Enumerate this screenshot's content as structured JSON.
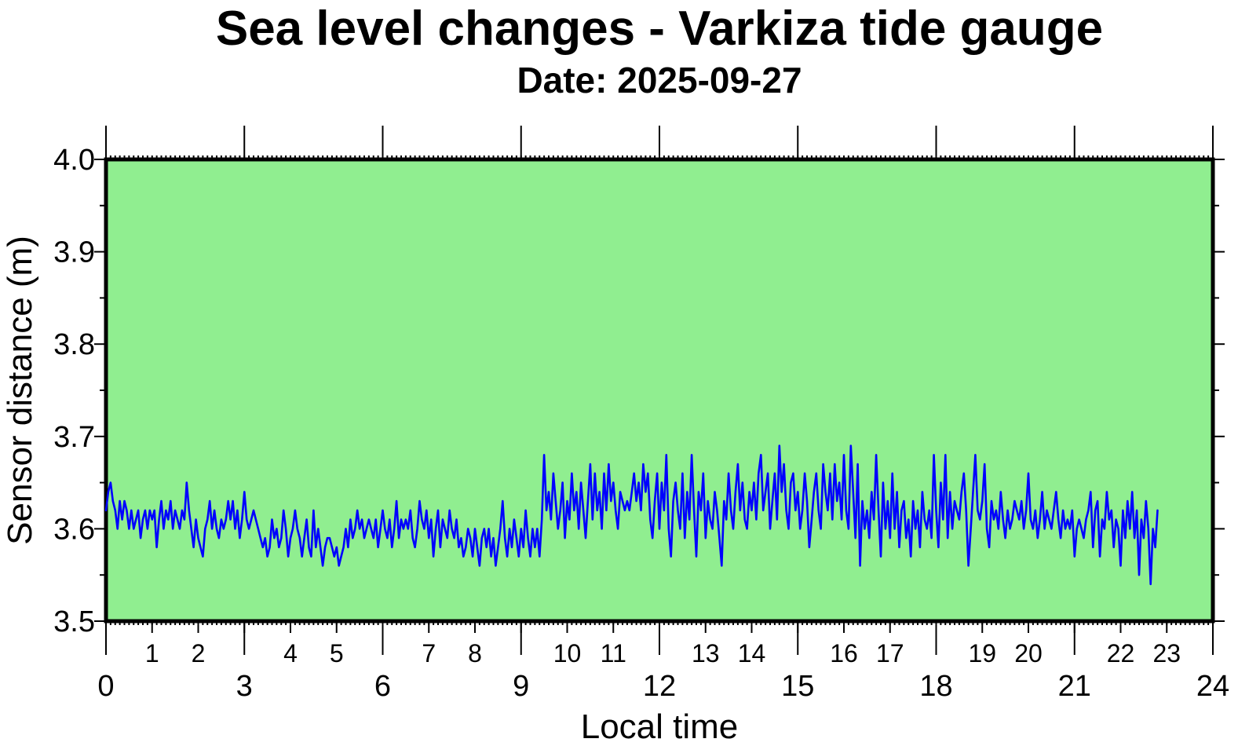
{
  "chart_data": {
    "type": "line",
    "title": "Sea level changes - Varkiza tide gauge",
    "subtitle": "Date: 2025-09-27",
    "xlabel": "Local time",
    "ylabel": "Sensor distance (m)",
    "xlim": [
      0,
      24
    ],
    "ylim": [
      3.5,
      4.0
    ],
    "x_major_ticks": [
      "0",
      "3",
      "6",
      "9",
      "12",
      "15",
      "18",
      "21",
      "24"
    ],
    "x_minor_ticks": [
      "1",
      "2",
      "4",
      "5",
      "7",
      "8",
      "10",
      "11",
      "13",
      "14",
      "16",
      "17",
      "19",
      "20",
      "22",
      "23"
    ],
    "y_ticks": [
      "3.5",
      "3.6",
      "3.7",
      "3.8",
      "3.9",
      "4.0"
    ],
    "grid": false,
    "colors": {
      "plot_background": "#90ee90",
      "line": "#0000ff",
      "frame": "#000000"
    },
    "series": [
      {
        "step_hours": 0.05,
        "values": [
          3.62,
          3.64,
          3.65,
          3.63,
          3.62,
          3.6,
          3.63,
          3.61,
          3.63,
          3.62,
          3.6,
          3.62,
          3.6,
          3.61,
          3.62,
          3.59,
          3.61,
          3.62,
          3.6,
          3.62,
          3.61,
          3.62,
          3.58,
          3.61,
          3.63,
          3.6,
          3.62,
          3.61,
          3.63,
          3.6,
          3.62,
          3.61,
          3.6,
          3.62,
          3.61,
          3.65,
          3.62,
          3.6,
          3.58,
          3.61,
          3.59,
          3.58,
          3.57,
          3.6,
          3.61,
          3.63,
          3.6,
          3.62,
          3.6,
          3.59,
          3.61,
          3.6,
          3.61,
          3.63,
          3.61,
          3.63,
          3.6,
          3.62,
          3.59,
          3.61,
          3.64,
          3.61,
          3.6,
          3.61,
          3.62,
          3.61,
          3.6,
          3.59,
          3.58,
          3.59,
          3.57,
          3.58,
          3.61,
          3.59,
          3.6,
          3.58,
          3.59,
          3.62,
          3.6,
          3.57,
          3.59,
          3.6,
          3.62,
          3.6,
          3.59,
          3.57,
          3.59,
          3.61,
          3.58,
          3.57,
          3.62,
          3.58,
          3.6,
          3.58,
          3.56,
          3.58,
          3.59,
          3.59,
          3.58,
          3.57,
          3.58,
          3.56,
          3.57,
          3.58,
          3.6,
          3.58,
          3.61,
          3.59,
          3.6,
          3.62,
          3.6,
          3.61,
          3.59,
          3.6,
          3.61,
          3.6,
          3.59,
          3.61,
          3.58,
          3.6,
          3.62,
          3.6,
          3.59,
          3.61,
          3.58,
          3.6,
          3.63,
          3.59,
          3.61,
          3.6,
          3.61,
          3.6,
          3.62,
          3.59,
          3.58,
          3.6,
          3.63,
          3.61,
          3.6,
          3.62,
          3.59,
          3.61,
          3.57,
          3.6,
          3.62,
          3.58,
          3.61,
          3.6,
          3.59,
          3.62,
          3.6,
          3.59,
          3.61,
          3.58,
          3.59,
          3.57,
          3.58,
          3.6,
          3.59,
          3.57,
          3.6,
          3.58,
          3.56,
          3.59,
          3.6,
          3.58,
          3.6,
          3.57,
          3.59,
          3.56,
          3.58,
          3.6,
          3.63,
          3.59,
          3.57,
          3.6,
          3.58,
          3.61,
          3.59,
          3.57,
          3.6,
          3.58,
          3.62,
          3.59,
          3.57,
          3.6,
          3.58,
          3.6,
          3.57,
          3.61,
          3.68,
          3.62,
          3.64,
          3.61,
          3.66,
          3.63,
          3.6,
          3.62,
          3.65,
          3.59,
          3.63,
          3.61,
          3.66,
          3.62,
          3.64,
          3.6,
          3.65,
          3.62,
          3.59,
          3.63,
          3.67,
          3.61,
          3.66,
          3.62,
          3.64,
          3.6,
          3.66,
          3.62,
          3.67,
          3.63,
          3.65,
          3.62,
          3.6,
          3.64,
          3.63,
          3.62,
          3.63,
          3.62,
          3.64,
          3.66,
          3.63,
          3.65,
          3.62,
          3.67,
          3.64,
          3.66,
          3.61,
          3.59,
          3.63,
          3.66,
          3.6,
          3.65,
          3.62,
          3.68,
          3.6,
          3.57,
          3.63,
          3.65,
          3.62,
          3.6,
          3.66,
          3.59,
          3.64,
          3.61,
          3.68,
          3.62,
          3.57,
          3.64,
          3.62,
          3.66,
          3.59,
          3.63,
          3.61,
          3.6,
          3.64,
          3.62,
          3.59,
          3.56,
          3.63,
          3.61,
          3.66,
          3.62,
          3.6,
          3.64,
          3.67,
          3.62,
          3.65,
          3.61,
          3.6,
          3.64,
          3.62,
          3.65,
          3.61,
          3.66,
          3.68,
          3.62,
          3.64,
          3.66,
          3.6,
          3.63,
          3.66,
          3.61,
          3.69,
          3.64,
          3.67,
          3.62,
          3.6,
          3.65,
          3.66,
          3.62,
          3.64,
          3.6,
          3.62,
          3.66,
          3.63,
          3.58,
          3.61,
          3.64,
          3.66,
          3.62,
          3.6,
          3.67,
          3.64,
          3.62,
          3.66,
          3.61,
          3.67,
          3.63,
          3.65,
          3.61,
          3.68,
          3.62,
          3.6,
          3.69,
          3.64,
          3.59,
          3.67,
          3.56,
          3.63,
          3.6,
          3.62,
          3.59,
          3.64,
          3.61,
          3.68,
          3.62,
          3.57,
          3.65,
          3.6,
          3.63,
          3.59,
          3.66,
          3.6,
          3.64,
          3.58,
          3.62,
          3.63,
          3.59,
          3.61,
          3.57,
          3.63,
          3.6,
          3.62,
          3.58,
          3.64,
          3.61,
          3.6,
          3.62,
          3.59,
          3.68,
          3.62,
          3.58,
          3.65,
          3.61,
          3.68,
          3.59,
          3.64,
          3.6,
          3.63,
          3.62,
          3.61,
          3.64,
          3.66,
          3.62,
          3.56,
          3.6,
          3.64,
          3.68,
          3.62,
          3.61,
          3.63,
          3.67,
          3.6,
          3.58,
          3.63,
          3.61,
          3.62,
          3.6,
          3.64,
          3.61,
          3.59,
          3.62,
          3.6,
          3.61,
          3.63,
          3.62,
          3.61,
          3.63,
          3.6,
          3.62,
          3.66,
          3.61,
          3.6,
          3.62,
          3.59,
          3.61,
          3.64,
          3.6,
          3.62,
          3.61,
          3.6,
          3.62,
          3.64,
          3.61,
          3.59,
          3.62,
          3.6,
          3.61,
          3.6,
          3.62,
          3.57,
          3.6,
          3.61,
          3.6,
          3.59,
          3.61,
          3.62,
          3.64,
          3.58,
          3.62,
          3.63,
          3.57,
          3.61,
          3.6,
          3.64,
          3.61,
          3.62,
          3.58,
          3.61,
          3.6,
          3.56,
          3.62,
          3.59,
          3.63,
          3.6,
          3.64,
          3.59,
          3.62,
          3.55,
          3.61,
          3.59,
          3.63,
          3.6,
          3.54,
          3.6,
          3.58,
          3.62
        ]
      }
    ]
  }
}
